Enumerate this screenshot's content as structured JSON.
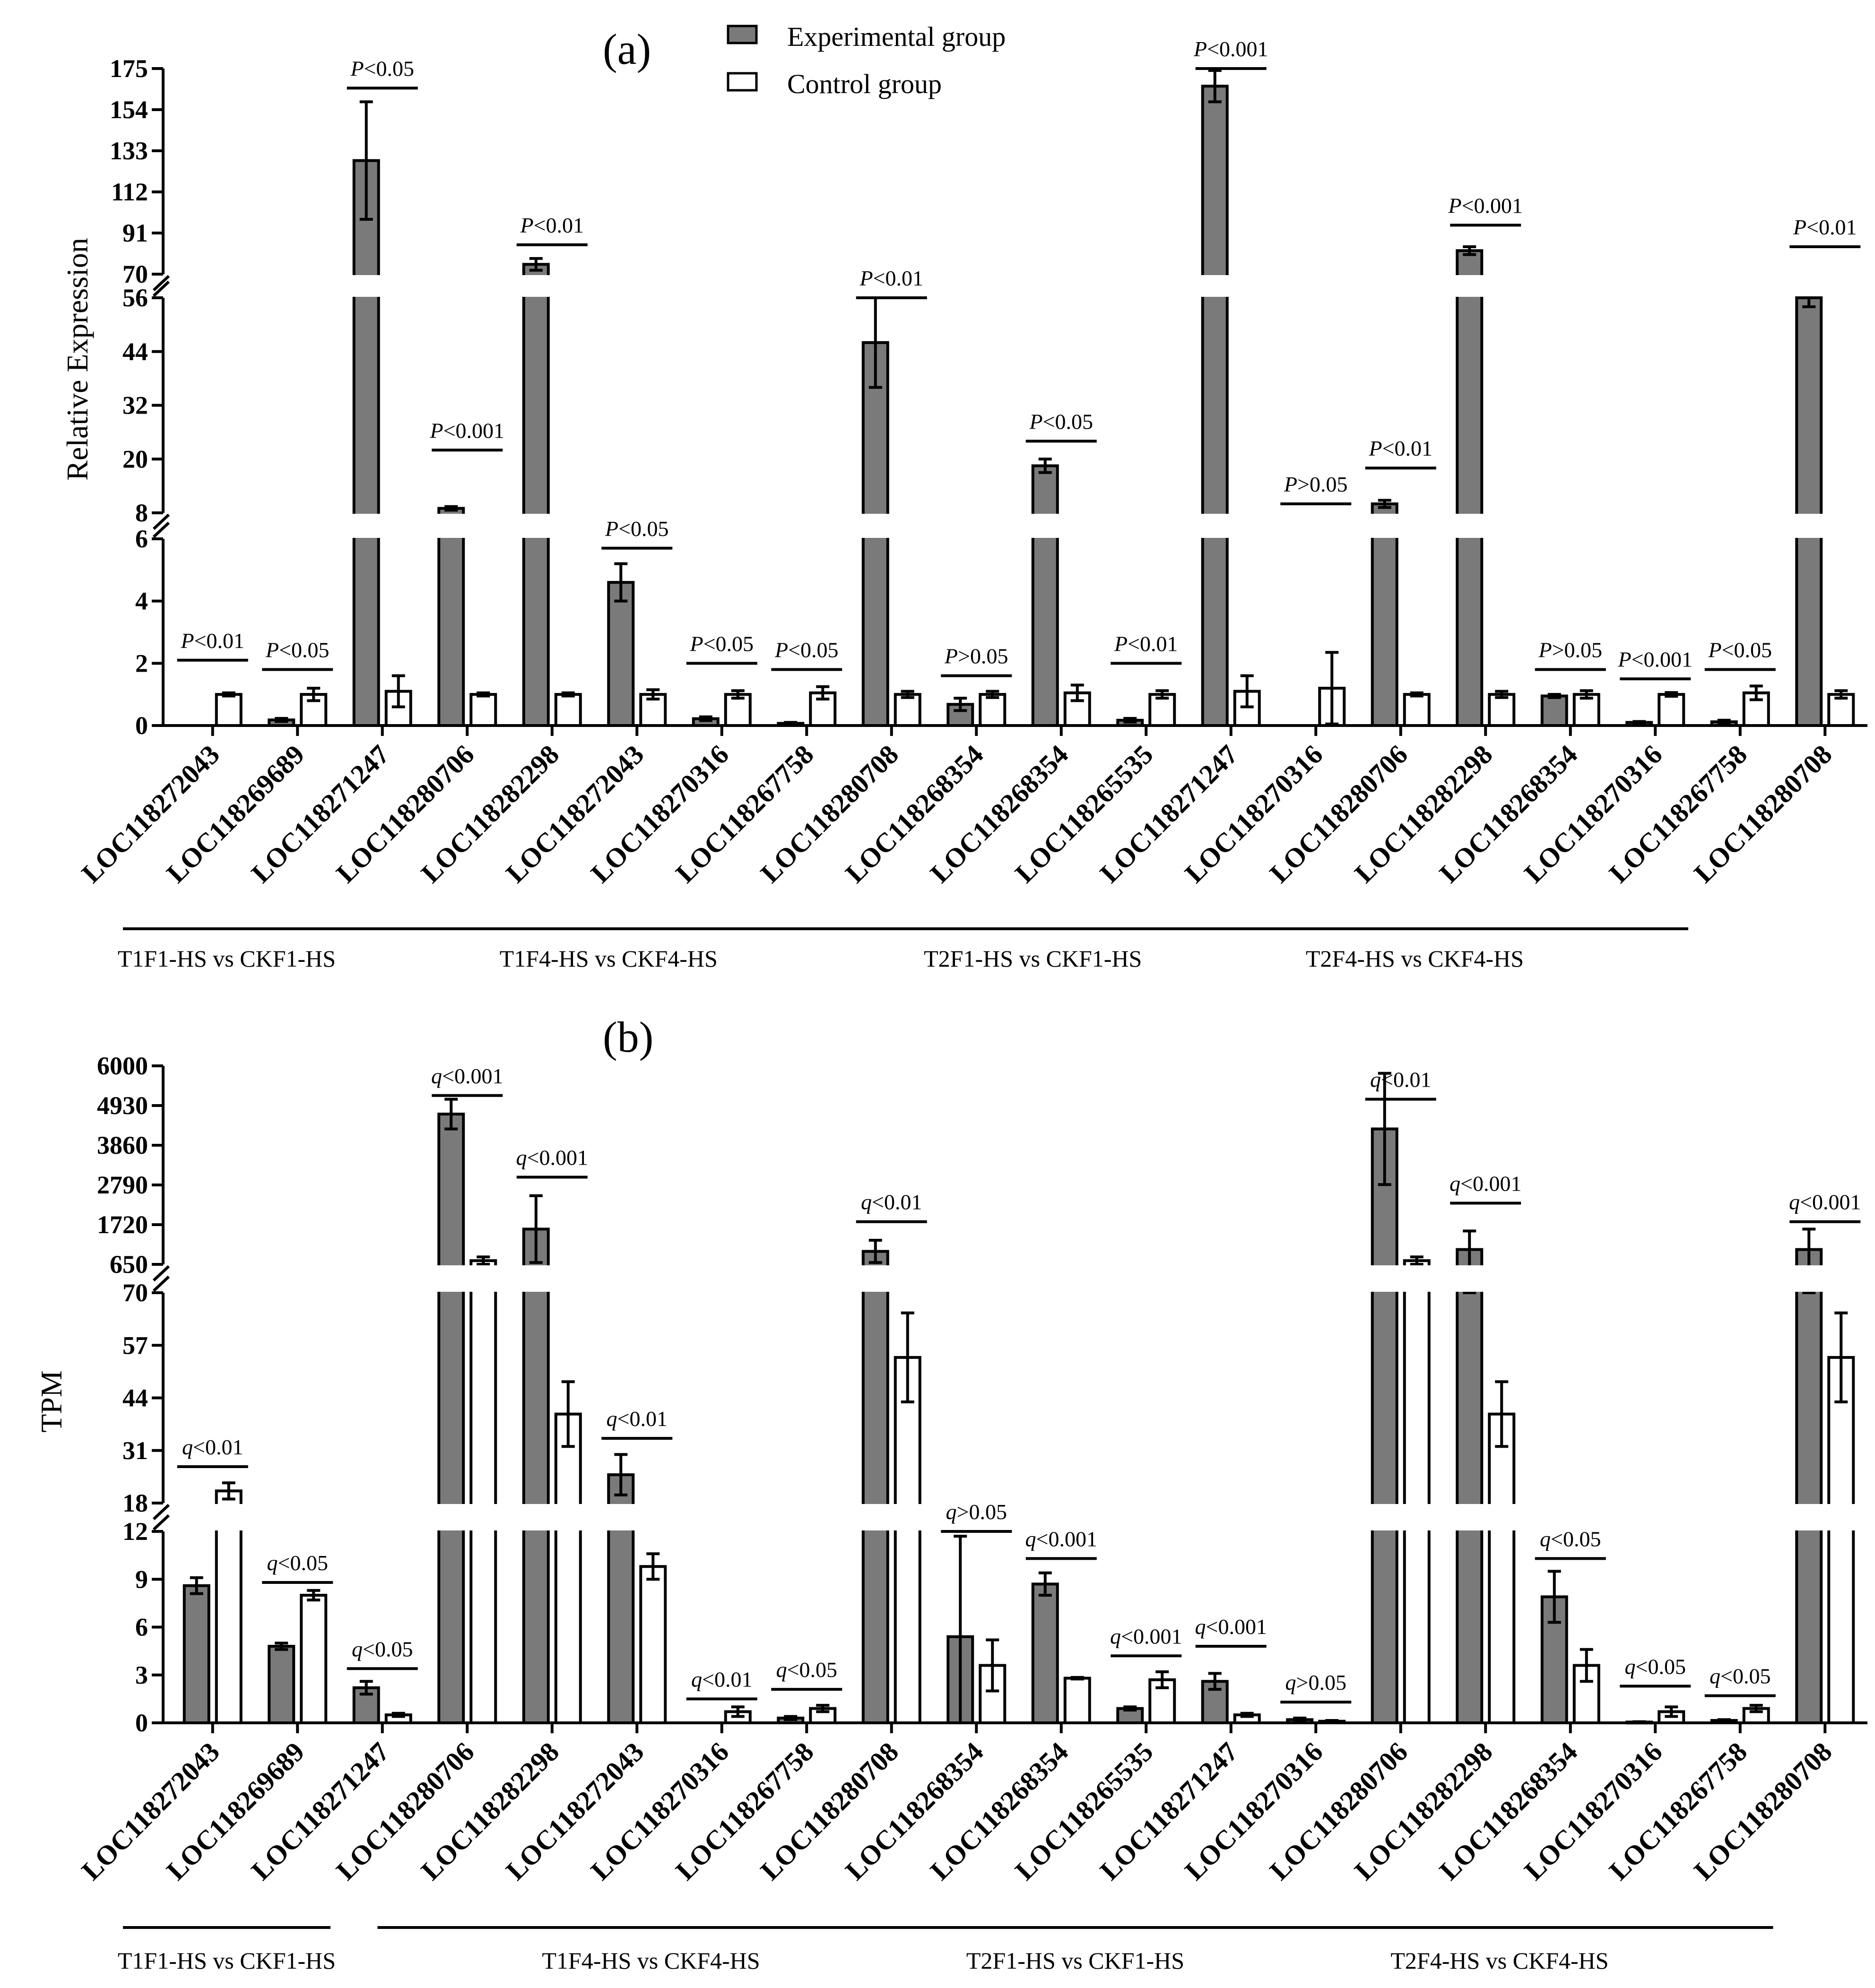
{
  "colors": {
    "experimental": "#7a7a7a",
    "control": "#ffffff",
    "stroke": "#000000"
  },
  "legend": {
    "experimental": "Experimental group",
    "control": "Control group"
  },
  "chart_data": [
    {
      "type": "bar",
      "panel_label": "(a)",
      "ylabel": "Relative Expression",
      "stat_symbol": "P",
      "axis_segments": [
        {
          "range": [
            0,
            6
          ],
          "ticks": [
            0,
            2,
            4,
            6
          ]
        },
        {
          "range": [
            8,
            56
          ],
          "ticks": [
            8,
            20,
            32,
            44,
            56
          ]
        },
        {
          "range": [
            70,
            175
          ],
          "ticks": [
            70,
            91,
            112,
            133,
            154,
            175
          ]
        }
      ],
      "categories": [
        "LOC118272043",
        "LOC118269689",
        "LOC118271247",
        "LOC118280706",
        "LOC118282298",
        "LOC118272043",
        "LOC118270316",
        "LOC118267758",
        "LOC118280708",
        "LOC118268354",
        "LOC118268354",
        "LOC118265535",
        "LOC118271247",
        "LOC118270316",
        "LOC118280706",
        "LOC118282298",
        "LOC118268354",
        "LOC118270316",
        "LOC118267758",
        "LOC118280708"
      ],
      "series": [
        {
          "name": "Experimental group",
          "values": [
            0,
            0.18,
            128,
            9,
            75,
            4.6,
            0.22,
            0.07,
            46,
            0.68,
            18.5,
            0.17,
            166,
            0,
            10,
            82,
            0.95,
            0.1,
            0.12,
            60
          ],
          "errors": [
            0,
            0.05,
            30,
            0.4,
            3,
            0.6,
            0.06,
            0.03,
            10,
            0.2,
            1.5,
            0.06,
            8,
            0,
            0.8,
            2,
            0.05,
            0.03,
            0.05,
            6
          ]
        },
        {
          "name": "Control group",
          "values": [
            1,
            1,
            1.1,
            1,
            1,
            1,
            1,
            1.05,
            1,
            1,
            1.05,
            1,
            1.1,
            1.2,
            1,
            1,
            1,
            1,
            1.05,
            1
          ],
          "errors": [
            0.05,
            0.2,
            0.5,
            0.05,
            0.05,
            0.15,
            0.12,
            0.2,
            0.1,
            0.1,
            0.25,
            0.12,
            0.5,
            1.15,
            0.05,
            0.1,
            0.12,
            0.06,
            0.22,
            0.12
          ]
        }
      ],
      "significance": [
        {
          "between": [
            0,
            0
          ],
          "label": "<0.01",
          "level": 2.1
        },
        {
          "between": [
            1,
            1
          ],
          "label": "<0.05",
          "level": 1.8
        },
        {
          "between": [
            2,
            2
          ],
          "label": "<0.05",
          "level": 165
        },
        {
          "between": [
            3,
            3
          ],
          "label": "<0.001",
          "level": 22
        },
        {
          "between": [
            4,
            4
          ],
          "label": "<0.01",
          "level": 85
        },
        {
          "between": [
            5,
            5
          ],
          "label": "<0.05",
          "level": 5.7
        },
        {
          "between": [
            6,
            6
          ],
          "label": "<0.05",
          "level": 2.0
        },
        {
          "between": [
            7,
            7
          ],
          "label": "<0.05",
          "level": 1.8
        },
        {
          "between": [
            8,
            8
          ],
          "label": "<0.01",
          "level": 59
        },
        {
          "between": [
            9,
            9
          ],
          "label": ">0.05",
          "level": 1.6
        },
        {
          "between": [
            10,
            10
          ],
          "label": "<0.05",
          "level": 24
        },
        {
          "between": [
            11,
            11
          ],
          "label": "<0.01",
          "level": 2.0
        },
        {
          "between": [
            12,
            12
          ],
          "label": "<0.001",
          "level": 175
        },
        {
          "between": [
            13,
            13
          ],
          "label": ">0.05",
          "level": 10
        },
        {
          "between": [
            14,
            14
          ],
          "label": "<0.01",
          "level": 18
        },
        {
          "between": [
            15,
            15
          ],
          "label": "<0.001",
          "level": 95
        },
        {
          "between": [
            16,
            16
          ],
          "label": ">0.05",
          "level": 1.8
        },
        {
          "between": [
            17,
            17
          ],
          "label": "<0.001",
          "level": 1.5
        },
        {
          "between": [
            18,
            18
          ],
          "label": "<0.05",
          "level": 1.8
        },
        {
          "between": [
            19,
            19
          ],
          "label": "<0.01",
          "level": 84
        }
      ],
      "groups": [
        {
          "label": "T1F1-HS vs CKF1-HS",
          "from": 0,
          "to": 1
        },
        {
          "label": "T1F4-HS vs CKF4-HS",
          "from": 2,
          "to": 8
        },
        {
          "label": "T2F1-HS vs CKF1-HS",
          "from": 9,
          "to": 11
        },
        {
          "label": "T2F4-HS vs CKF4-HS",
          "from": 12,
          "to": 17
        }
      ]
    },
    {
      "type": "bar",
      "panel_label": "(b)",
      "ylabel": "TPM",
      "stat_symbol": "q",
      "axis_segments": [
        {
          "range": [
            0,
            12
          ],
          "ticks": [
            0,
            3,
            6,
            9,
            12
          ]
        },
        {
          "range": [
            18,
            70
          ],
          "ticks": [
            18,
            31,
            44,
            57,
            70
          ]
        },
        {
          "range": [
            650,
            6000
          ],
          "ticks": [
            650,
            1720,
            2790,
            3860,
            4930,
            6000
          ]
        }
      ],
      "categories": [
        "LOC118272043",
        "LOC118269689",
        "LOC118271247",
        "LOC118280706",
        "LOC118282298",
        "LOC118272043",
        "LOC118270316",
        "LOC118267758",
        "LOC118280708",
        "LOC118268354",
        "LOC118268354",
        "LOC118265535",
        "LOC118271247",
        "LOC118270316",
        "LOC118280706",
        "LOC118282298",
        "LOC118268354",
        "LOC118270316",
        "LOC118267758",
        "LOC118280708"
      ],
      "series": [
        {
          "name": "Experimental group",
          "values": [
            8.6,
            4.8,
            2.2,
            4700,
            1600,
            25,
            0,
            0.3,
            1000,
            5.4,
            8.7,
            0.9,
            2.6,
            0.2,
            4300,
            1050,
            7.9,
            0.05,
            0.15,
            1050
          ],
          "errors": [
            0.5,
            0.2,
            0.4,
            400,
            900,
            5,
            0,
            0.1,
            300,
            6.3,
            0.7,
            0.1,
            0.5,
            0.1,
            1500,
            500,
            1.6,
            0.02,
            0.05,
            550
          ]
        },
        {
          "name": "Control group",
          "values": [
            21,
            8,
            0.5,
            750,
            40,
            9.8,
            0.7,
            0.9,
            54,
            3.6,
            2.8,
            2.7,
            0.5,
            0.1,
            750,
            40,
            3.6,
            0.7,
            0.9,
            54
          ],
          "errors": [
            2,
            0.3,
            0.1,
            100,
            8,
            0.8,
            0.3,
            0.2,
            11,
            1.6,
            0.05,
            0.5,
            0.1,
            0.05,
            100,
            8,
            1,
            0.3,
            0.2,
            11
          ]
        }
      ],
      "significance": [
        {
          "between": [
            0,
            0
          ],
          "label": "<0.01",
          "level": 27
        },
        {
          "between": [
            1,
            1
          ],
          "label": "<0.05",
          "level": 8.8
        },
        {
          "between": [
            2,
            2
          ],
          "label": "<0.05",
          "level": 3.4
        },
        {
          "between": [
            3,
            3
          ],
          "label": "<0.001",
          "level": 5200
        },
        {
          "between": [
            4,
            4
          ],
          "label": "<0.001",
          "level": 3000
        },
        {
          "between": [
            5,
            5
          ],
          "label": "<0.01",
          "level": 34
        },
        {
          "between": [
            6,
            6
          ],
          "label": "<0.01",
          "level": 1.5
        },
        {
          "between": [
            7,
            7
          ],
          "label": "<0.05",
          "level": 2.1
        },
        {
          "between": [
            8,
            8
          ],
          "label": "<0.01",
          "level": 1800
        },
        {
          "between": [
            9,
            9
          ],
          "label": ">0.05",
          "level": 12
        },
        {
          "between": [
            10,
            10
          ],
          "label": "<0.001",
          "level": 10.3
        },
        {
          "between": [
            11,
            11
          ],
          "label": "<0.001",
          "level": 4.2
        },
        {
          "between": [
            12,
            12
          ],
          "label": "<0.001",
          "level": 4.8
        },
        {
          "between": [
            13,
            13
          ],
          "label": ">0.05",
          "level": 1.3
        },
        {
          "between": [
            14,
            14
          ],
          "label": "<0.01",
          "level": 5100
        },
        {
          "between": [
            15,
            15
          ],
          "label": "<0.001",
          "level": 2300
        },
        {
          "between": [
            16,
            16
          ],
          "label": "<0.05",
          "level": 10.3
        },
        {
          "between": [
            17,
            17
          ],
          "label": "<0.05",
          "level": 2.3
        },
        {
          "between": [
            18,
            18
          ],
          "label": "<0.05",
          "level": 1.7
        },
        {
          "between": [
            19,
            19
          ],
          "label": "<0.001",
          "level": 1800
        }
      ],
      "groups": [
        {
          "label": "T1F1-HS vs CKF1-HS",
          "from": 0,
          "to": 1
        },
        {
          "label": "T1F4-HS vs CKF4-HS",
          "from": 3,
          "to": 8
        },
        {
          "label": "T2F1-HS vs CKF1-HS",
          "from": 9,
          "to": 12
        },
        {
          "label": "T2F4-HS vs CKF4-HS",
          "from": 13,
          "to": 18
        }
      ]
    }
  ]
}
